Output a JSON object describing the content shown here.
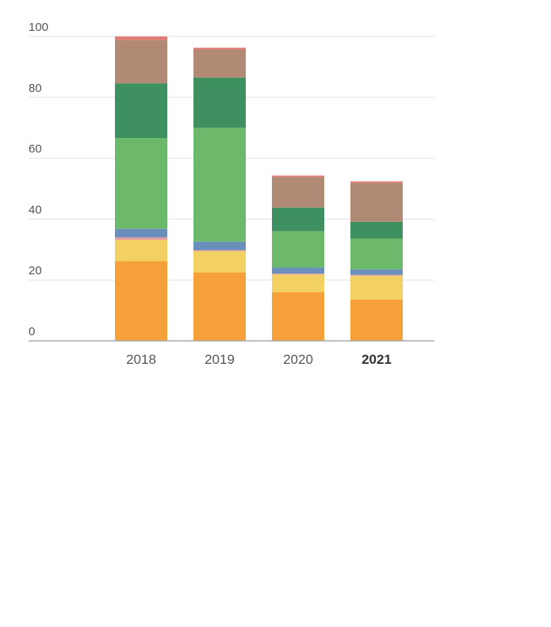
{
  "chart_data": {
    "type": "bar",
    "stacked": true,
    "title": "",
    "xlabel": "",
    "ylabel": "",
    "ylim": [
      0,
      100
    ],
    "yticks": [
      0,
      20,
      40,
      60,
      80,
      100
    ],
    "grid": true,
    "categories": [
      "2018",
      "2019",
      "2020",
      "2021"
    ],
    "highlight_category": "2021",
    "series": [
      {
        "color": "#f6a03a",
        "values": [
          26.2,
          22.5,
          16.0,
          13.6
        ]
      },
      {
        "color": "#f2d061",
        "values": [
          7.0,
          7.0,
          5.8,
          7.8
        ]
      },
      {
        "color": "#e59aa8",
        "values": [
          0.8,
          0.3,
          0.3,
          0.3
        ]
      },
      {
        "color": "#6a8fba",
        "values": [
          2.8,
          2.8,
          2.0,
          1.8
        ]
      },
      {
        "color": "#6cb96b",
        "values": [
          29.8,
          37.4,
          11.9,
          10.1
        ]
      },
      {
        "color": "#3e9060",
        "values": [
          18.0,
          16.5,
          7.8,
          5.5
        ]
      },
      {
        "color": "#b08a74",
        "values": [
          14.2,
          9.2,
          10.0,
          12.8
        ]
      },
      {
        "color": "#e27c76",
        "values": [
          1.2,
          0.6,
          0.5,
          0.5
        ]
      }
    ]
  }
}
